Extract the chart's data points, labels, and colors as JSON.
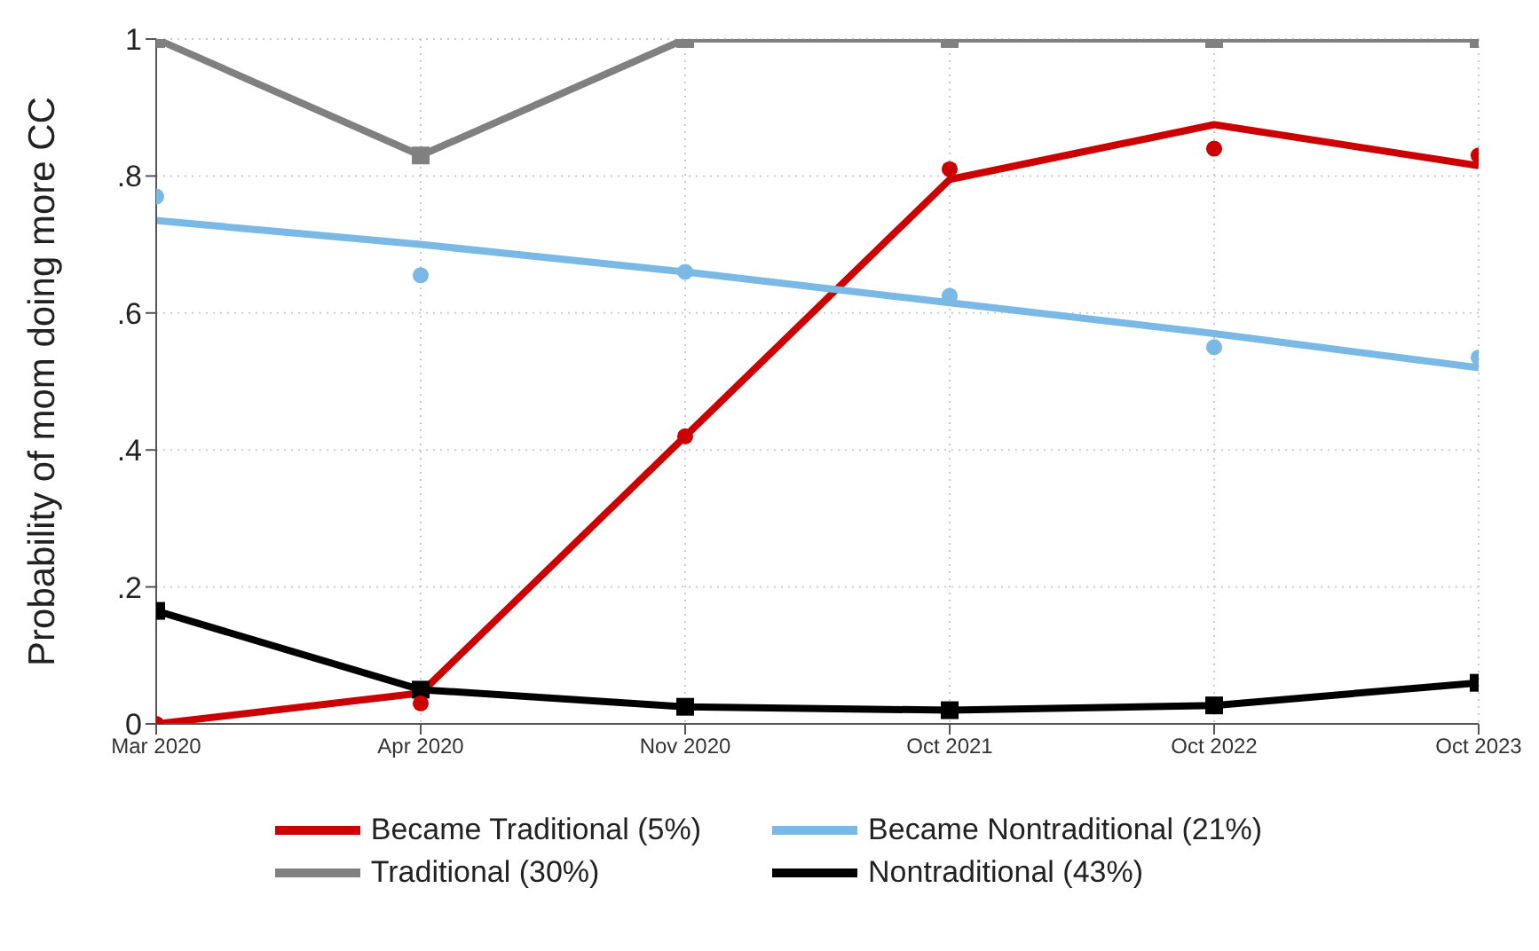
{
  "chart_data": {
    "type": "line",
    "ylabel": "Probability of mom doing more CC",
    "categories": [
      "Mar 2020",
      "Apr 2020",
      "Nov 2020",
      "Oct 2021",
      "Oct 2022",
      "Oct 2023"
    ],
    "ylim": [
      0,
      1
    ],
    "yticks": [
      0,
      {
        "value": 0.2,
        "label": ".2"
      },
      {
        "value": 0.4,
        "label": ".4"
      },
      {
        "value": 0.6,
        "label": ".6"
      },
      {
        "value": 0.8,
        "label": ".8"
      },
      1
    ],
    "grid": true,
    "legend": "bottom",
    "line_style": "solid",
    "series": [
      {
        "name": "Became Traditional (5%)",
        "color": "#cc0000",
        "marker": "none",
        "values": [
          0,
          0.045,
          0.42,
          0.795,
          0.875,
          0.815
        ]
      },
      {
        "name": "Became Nontraditional (21%)",
        "color": "#7ab8e6",
        "marker": "none",
        "values": [
          0.735,
          0.7,
          0.66,
          0.615,
          0.57,
          0.52
        ]
      },
      {
        "name": "Traditional (30%)",
        "color": "#808080",
        "marker": "square",
        "values": [
          1,
          0.83,
          1,
          1,
          1,
          1
        ]
      },
      {
        "name": "Nontraditional (43%)",
        "color": "#000000",
        "marker": "square",
        "values": [
          0.165,
          0.05,
          0.025,
          0.02,
          0.027,
          0.06
        ]
      },
      {
        "type": "scatter",
        "color": "#cc0000",
        "marker": "circle",
        "values": [
          0,
          0.03,
          0.42,
          0.81,
          0.84,
          0.83
        ]
      },
      {
        "type": "scatter",
        "color": "#7ab8e6",
        "marker": "circle",
        "values": [
          0.77,
          0.655,
          0.66,
          0.625,
          0.55,
          0.535
        ]
      }
    ]
  }
}
